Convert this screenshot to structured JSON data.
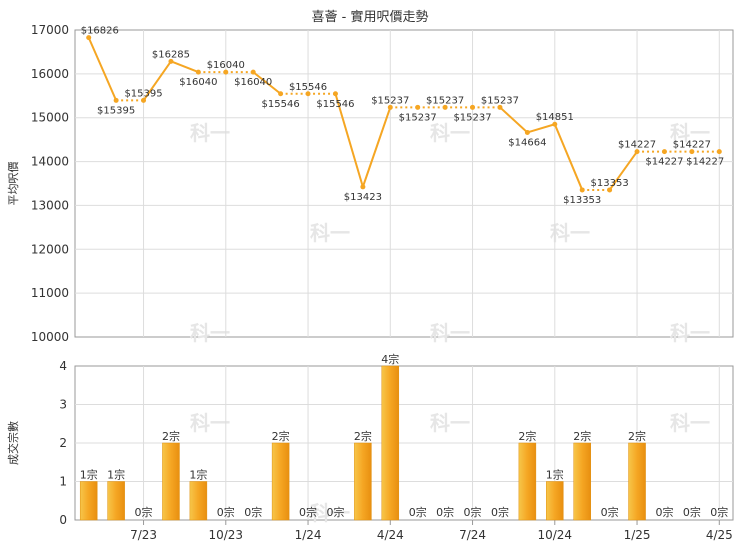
{
  "chart_data": [
    {
      "type": "line",
      "title": "喜薈 - 實用呎價走勢",
      "ylabel": "平均呎價",
      "ylim": [
        10000,
        17000
      ],
      "y_ticks": [
        10000,
        11000,
        12000,
        13000,
        14000,
        15000,
        16000,
        17000
      ],
      "grid": true,
      "color": "#f5a623",
      "series": [
        {
          "points": [
            {
              "i": 0,
              "value": 16826,
              "label": "$16826",
              "dashed_from_prev": false
            },
            {
              "i": 1,
              "value": 15395,
              "label": "$15395",
              "dashed_from_prev": false
            },
            {
              "i": 2,
              "value": 15395,
              "label": "$15395",
              "dashed_from_prev": true
            },
            {
              "i": 3,
              "value": 16285,
              "label": "$16285",
              "dashed_from_prev": false
            },
            {
              "i": 4,
              "value": 16040,
              "label": "$16040",
              "dashed_from_prev": false
            },
            {
              "i": 5,
              "value": 16040,
              "label": "$16040",
              "dashed_from_prev": true
            },
            {
              "i": 6,
              "value": 16040,
              "label": "$16040",
              "dashed_from_prev": true
            },
            {
              "i": 7,
              "value": 15546,
              "label": "$15546",
              "dashed_from_prev": false
            },
            {
              "i": 8,
              "value": 15546,
              "label": "$15546",
              "dashed_from_prev": true
            },
            {
              "i": 9,
              "value": 15546,
              "label": "$15546",
              "dashed_from_prev": true
            },
            {
              "i": 10,
              "value": 13423,
              "label": "$13423",
              "dashed_from_prev": false
            },
            {
              "i": 11,
              "value": 15237,
              "label": "$15237",
              "dashed_from_prev": false
            },
            {
              "i": 12,
              "value": 15237,
              "label": "$15237",
              "dashed_from_prev": true
            },
            {
              "i": 13,
              "value": 15237,
              "label": "$15237",
              "dashed_from_prev": true
            },
            {
              "i": 14,
              "value": 15237,
              "label": "$15237",
              "dashed_from_prev": true
            },
            {
              "i": 15,
              "value": 15237,
              "label": "$15237",
              "dashed_from_prev": true
            },
            {
              "i": 16,
              "value": 14664,
              "label": "$14664",
              "dashed_from_prev": false
            },
            {
              "i": 17,
              "value": 14851,
              "label": "$14851",
              "dashed_from_prev": false
            },
            {
              "i": 18,
              "value": 13353,
              "label": "$13353",
              "dashed_from_prev": false
            },
            {
              "i": 19,
              "value": 13353,
              "label": "$13353",
              "dashed_from_prev": true
            },
            {
              "i": 20,
              "value": 14227,
              "label": "$14227",
              "dashed_from_prev": false
            },
            {
              "i": 21,
              "value": 14227,
              "label": "$14227",
              "dashed_from_prev": true
            },
            {
              "i": 22,
              "value": 14227,
              "label": "$14227",
              "dashed_from_prev": true
            },
            {
              "i": 23,
              "value": 14227,
              "label": "$14227",
              "dashed_from_prev": true
            }
          ]
        }
      ]
    },
    {
      "type": "bar",
      "ylabel": "成交宗數",
      "ylim": [
        0,
        4
      ],
      "y_ticks": [
        0,
        1,
        2,
        3,
        4
      ],
      "grid": true,
      "color": "#f5a623",
      "values": [
        1,
        1,
        0,
        2,
        1,
        0,
        0,
        2,
        0,
        0,
        2,
        4,
        0,
        0,
        0,
        0,
        2,
        1,
        2,
        0,
        2,
        0,
        0,
        0
      ],
      "bar_labels": [
        "1宗",
        "1宗",
        "0宗",
        "2宗",
        "1宗",
        "0宗",
        "0宗",
        "2宗",
        "0宗",
        "0宗",
        "2宗",
        "4宗",
        "0宗",
        "0宗",
        "0宗",
        "0宗",
        "2宗",
        "1宗",
        "2宗",
        "0宗",
        "2宗",
        "0宗",
        "0宗",
        "0宗"
      ],
      "x_ticks": [
        {
          "label": "7/23",
          "at": 2.5
        },
        {
          "label": "10/23",
          "at": 5.5
        },
        {
          "label": "1/24",
          "at": 8.5
        },
        {
          "label": "4/24",
          "at": 11.5
        },
        {
          "label": "7/24",
          "at": 14.5
        },
        {
          "label": "10/24",
          "at": 17.5
        },
        {
          "label": "1/25",
          "at": 20.5
        },
        {
          "label": "4/25",
          "at": 23.5
        }
      ]
    }
  ],
  "watermark": "科一"
}
